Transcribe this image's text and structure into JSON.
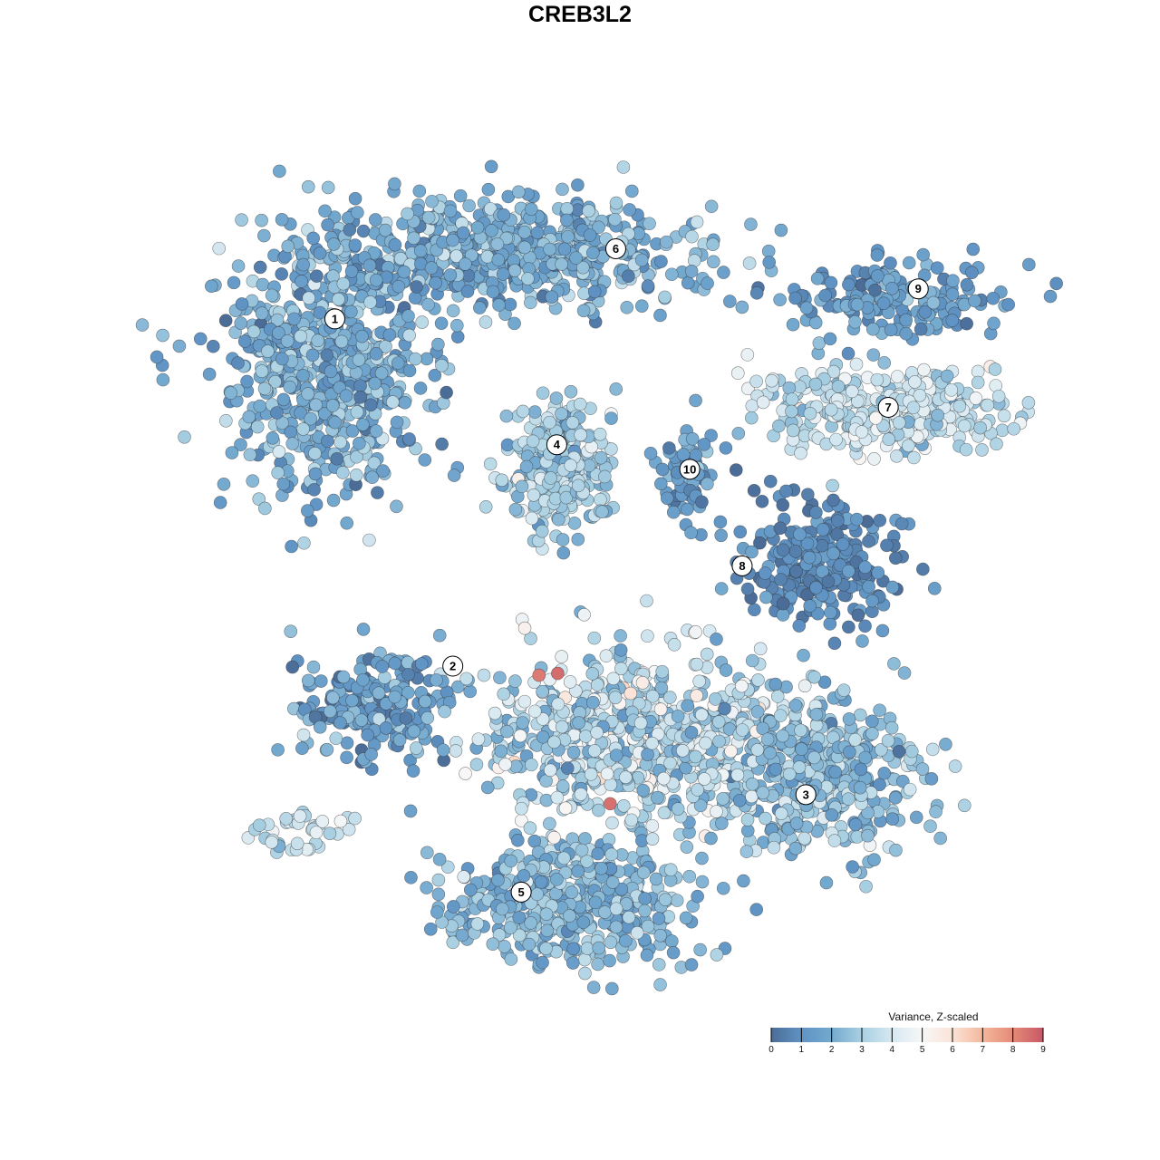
{
  "chart_data": {
    "type": "scatter",
    "title": "CREB3L2",
    "xlabel": "",
    "ylabel": "",
    "xlim": [
      -45,
      45
    ],
    "ylim": [
      -45,
      45
    ],
    "grid": false,
    "axes_visible": false,
    "color_scale": {
      "title": "Variance, Z-scaled",
      "range": [
        0,
        9
      ],
      "ticks": [
        0,
        1,
        2,
        3,
        4,
        5,
        6,
        7,
        8,
        9
      ],
      "tick_labels": [
        "0",
        "1",
        "2",
        "3",
        "4",
        "5",
        "6",
        "7",
        "8",
        "9"
      ],
      "stops": [
        "#4b6c97",
        "#5f93c4",
        "#74a9cf",
        "#a9d0e2",
        "#d6e8f1",
        "#f7f7f7",
        "#fbe3d7",
        "#f4b79b",
        "#e48a78",
        "#c95766"
      ],
      "legend_placement": "bottom-right"
    },
    "cluster_labels": [
      {
        "label": "1",
        "x": -28.6,
        "y": 28.4
      },
      {
        "label": "2",
        "x": -16.0,
        "y": -9.7
      },
      {
        "label": "3",
        "x": 21.7,
        "y": -23.8
      },
      {
        "label": "4",
        "x": -4.9,
        "y": 14.6
      },
      {
        "label": "5",
        "x": -8.7,
        "y": -34.5
      },
      {
        "label": "6",
        "x": 1.4,
        "y": 36.1
      },
      {
        "label": "7",
        "x": 30.5,
        "y": 18.7
      },
      {
        "label": "8",
        "x": 14.9,
        "y": 1.3
      },
      {
        "label": "9",
        "x": 33.7,
        "y": 31.7
      },
      {
        "label": "10",
        "x": 9.3,
        "y": 11.9
      }
    ],
    "clusters": [
      {
        "cluster": "1",
        "x": -29.6,
        "y": 23.0,
        "sx": 7.5,
        "sy": 9.0,
        "n": 650,
        "mean_value": 2.0,
        "sd_value": 0.8
      },
      {
        "cluster": "6",
        "x": -10.2,
        "y": 35.6,
        "sx": 13.0,
        "sy": 3.8,
        "n": 650,
        "mean_value": 2.0,
        "sd_value": 0.8
      },
      {
        "cluster": "4",
        "x": -4.9,
        "y": 12.5,
        "sx": 3.8,
        "sy": 4.5,
        "n": 300,
        "mean_value": 3.0,
        "sd_value": 0.8
      },
      {
        "cluster": "10",
        "x": 9.3,
        "y": 11.0,
        "sx": 2.0,
        "sy": 3.5,
        "n": 70,
        "mean_value": 1.5,
        "sd_value": 0.8
      },
      {
        "cluster": "9",
        "x": 31.5,
        "y": 30.5,
        "sx": 8.0,
        "sy": 2.8,
        "n": 180,
        "mean_value": 1.5,
        "sd_value": 0.6
      },
      {
        "cluster": "7",
        "x": 29.5,
        "y": 18.5,
        "sx": 9.0,
        "sy": 3.0,
        "n": 350,
        "mean_value": 3.6,
        "sd_value": 0.7
      },
      {
        "cluster": "8",
        "x": 22.8,
        "y": 1.7,
        "sx": 5.5,
        "sy": 4.5,
        "n": 260,
        "mean_value": 0.8,
        "sd_value": 0.5
      },
      {
        "cluster": "2",
        "x": -24.8,
        "y": -13.9,
        "sx": 6.0,
        "sy": 4.0,
        "n": 220,
        "mean_value": 1.4,
        "sd_value": 0.8
      },
      {
        "cluster": "3",
        "x": 22.8,
        "y": -21.7,
        "sx": 7.5,
        "sy": 6.0,
        "n": 450,
        "mean_value": 2.5,
        "sd_value": 0.8
      },
      {
        "cluster": "5",
        "x": -3.5,
        "y": -35.5,
        "sx": 9.0,
        "sy": 4.5,
        "n": 450,
        "mean_value": 2.3,
        "sd_value": 0.7
      },
      {
        "cluster": "5",
        "x": 3.0,
        "y": -17.0,
        "sx": 10.0,
        "sy": 6.5,
        "n": 700,
        "mean_value": 3.3,
        "sd_value": 1.0
      },
      {
        "cluster": "2",
        "x": -33.0,
        "y": -27.5,
        "sx": 4.5,
        "sy": 1.6,
        "n": 40,
        "mean_value": 3.5,
        "sd_value": 0.5
      }
    ],
    "high_points": [
      {
        "x": -6.8,
        "y": -10.7,
        "value": 8.3
      },
      {
        "x": -4.8,
        "y": -10.5,
        "value": 8.6
      },
      {
        "x": 0.8,
        "y": -24.8,
        "value": 8.5
      }
    ]
  }
}
